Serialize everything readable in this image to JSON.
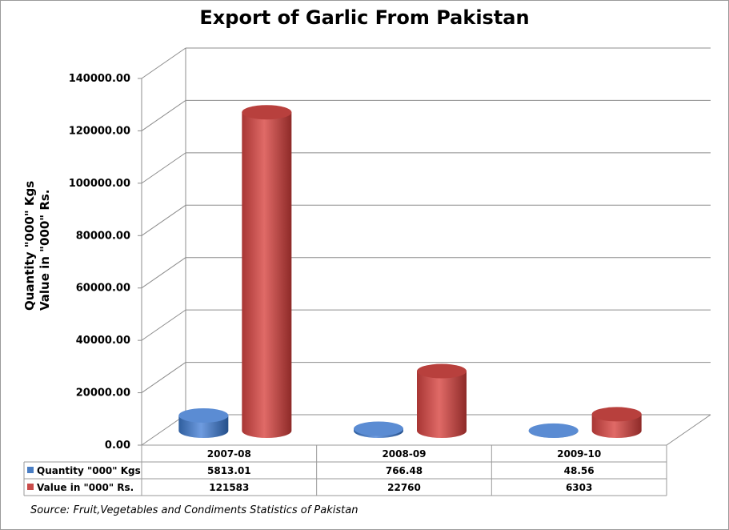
{
  "chart_data": {
    "type": "bar",
    "title": "Export of Garlic From Pakistan",
    "ylabel_lines": [
      "Quantity \"000\" Kgs",
      "Value in \"000\" Rs."
    ],
    "categories": [
      "2007-08",
      "2008-09",
      "2009-10"
    ],
    "series": [
      {
        "name": "Quantity \"000\" Kgs",
        "values": [
          5813.01,
          766.48,
          48.56
        ],
        "value_labels": [
          "5813.01",
          "766.48",
          "48.56"
        ],
        "color": "#4a7ec4"
      },
      {
        "name": "Value in \"000\" Rs.",
        "values": [
          121583,
          22760,
          6303
        ],
        "value_labels": [
          "121583",
          "22760",
          "6303"
        ],
        "color": "#c94c4a"
      }
    ],
    "ylim": [
      0,
      140000
    ],
    "yticks": [
      "0.00",
      "20000.00",
      "40000.00",
      "60000.00",
      "80000.00",
      "100000.00",
      "120000.00",
      "140000.00"
    ],
    "grid": true,
    "legend": "data-table-below",
    "source": "Source: Fruit,Vegetables and Condiments Statistics of Pakistan"
  }
}
